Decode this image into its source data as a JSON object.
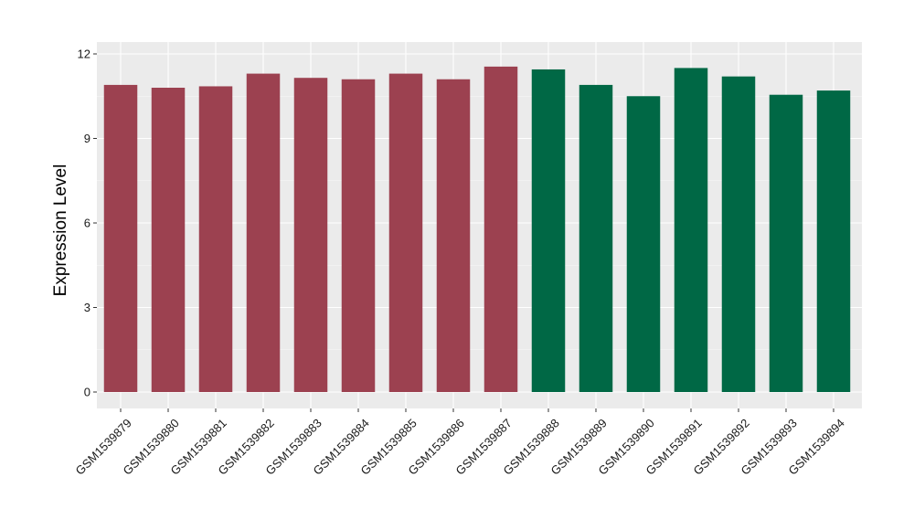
{
  "chart_data": {
    "type": "bar",
    "title": "",
    "xlabel": "",
    "ylabel": "Expression Level",
    "ylim": [
      -0.55,
      12
    ],
    "yticks": [
      0,
      3,
      6,
      9,
      12
    ],
    "grid": true,
    "legend": "none",
    "colors": {
      "group_a": "#9c4150",
      "group_b": "#006845",
      "panel_background": "#ebebeb",
      "gridline": "#ffffff"
    },
    "categories": [
      "GSM1539879",
      "GSM1539880",
      "GSM1539881",
      "GSM1539882",
      "GSM1539883",
      "GSM1539884",
      "GSM1539885",
      "GSM1539886",
      "GSM1539887",
      "GSM1539888",
      "GSM1539889",
      "GSM1539890",
      "GSM1539891",
      "GSM1539892",
      "GSM1539893",
      "GSM1539894"
    ],
    "values": [
      10.9,
      10.8,
      10.85,
      11.3,
      11.15,
      11.1,
      11.3,
      11.1,
      11.55,
      11.45,
      10.9,
      10.5,
      11.5,
      11.2,
      10.55,
      10.7
    ],
    "bar_groups": [
      "group_a",
      "group_a",
      "group_a",
      "group_a",
      "group_a",
      "group_a",
      "group_a",
      "group_a",
      "group_a",
      "group_b",
      "group_b",
      "group_b",
      "group_b",
      "group_b",
      "group_b",
      "group_b"
    ]
  }
}
